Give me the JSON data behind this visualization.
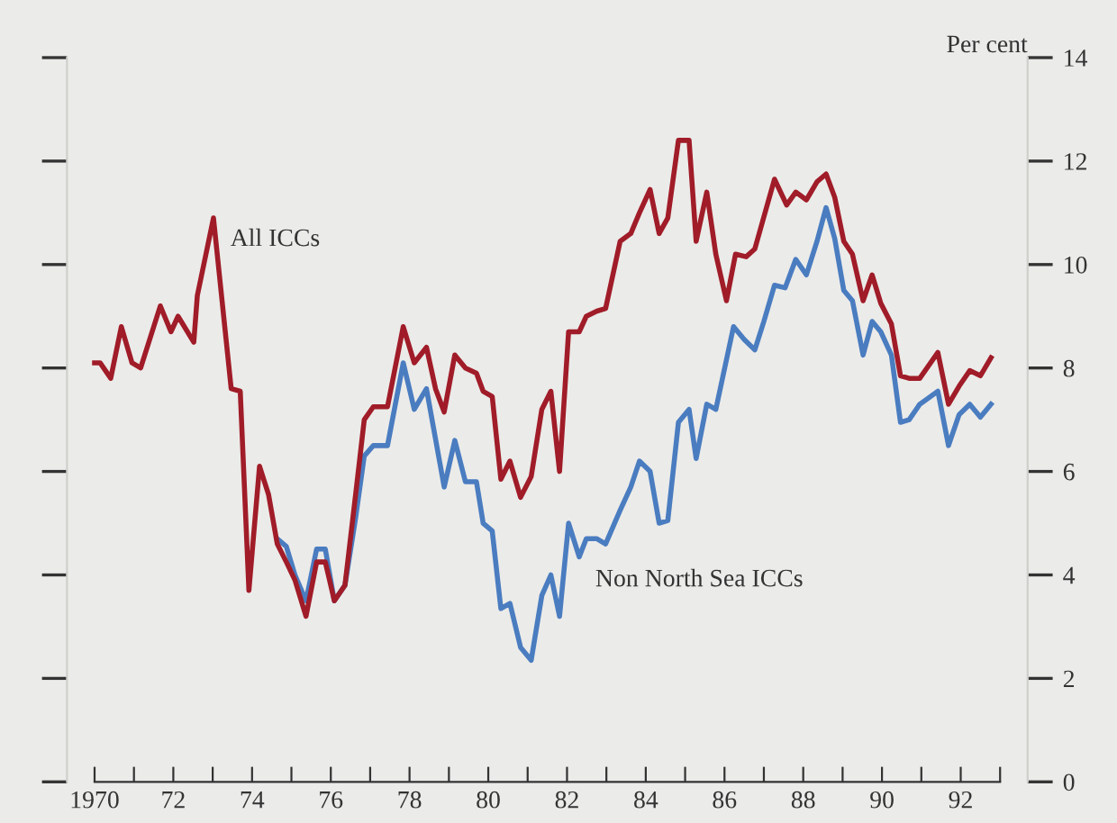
{
  "chart_data": {
    "type": "line",
    "ylabel": "Per cent",
    "xlim": [
      1969.3,
      1993.7
    ],
    "ylim": [
      0,
      14
    ],
    "xticks": [
      1970,
      {
        "value": 1971,
        "label": null
      },
      {
        "value": 1972,
        "label": "72"
      },
      {
        "value": 1973,
        "label": null
      },
      {
        "value": 1974,
        "label": "74"
      },
      {
        "value": 1975,
        "label": null
      },
      {
        "value": 1976,
        "label": "76"
      },
      {
        "value": 1977,
        "label": null
      },
      {
        "value": 1978,
        "label": "78"
      },
      {
        "value": 1979,
        "label": null
      },
      {
        "value": 1980,
        "label": "80"
      },
      {
        "value": 1981,
        "label": null
      },
      {
        "value": 1982,
        "label": "82"
      },
      {
        "value": 1983,
        "label": null
      },
      {
        "value": 1984,
        "label": "84"
      },
      {
        "value": 1985,
        "label": null
      },
      {
        "value": 1986,
        "label": "86"
      },
      {
        "value": 1987,
        "label": null
      },
      {
        "value": 1988,
        "label": "88"
      },
      {
        "value": 1989,
        "label": null
      },
      {
        "value": 1990,
        "label": "90"
      },
      {
        "value": 1991,
        "label": null
      },
      {
        "value": 1992,
        "label": "92"
      },
      {
        "value": 1993,
        "label": null
      }
    ],
    "yticks": [
      0,
      2,
      4,
      6,
      8,
      10,
      12,
      14
    ],
    "grid": false,
    "legend": false,
    "marker": "none",
    "line_style": "solid",
    "series": [
      {
        "name": "Non North Sea ICCs",
        "color": "#4a7cc0",
        "x": [
          1974.64,
          1974.87,
          1975.09,
          1975.37,
          1975.64,
          1975.86,
          1976.09,
          1976.36,
          1976.63,
          1976.85,
          1977.08,
          1977.44,
          1977.84,
          1978.12,
          1978.43,
          1978.88,
          1979.15,
          1979.42,
          1979.7,
          1979.87,
          1980.1,
          1980.32,
          1980.55,
          1980.82,
          1981.09,
          1981.36,
          1981.59,
          1981.81,
          1982.04,
          1982.31,
          1982.49,
          1982.76,
          1982.98,
          1983.35,
          1983.62,
          1983.84,
          1984.11,
          1984.34,
          1984.56,
          1984.83,
          1985.1,
          1985.28,
          1985.55,
          1985.78,
          1986.23,
          1986.5,
          1986.77,
          1987.0,
          1987.27,
          1987.54,
          1987.81,
          1988.08,
          1988.35,
          1988.58,
          1988.8,
          1989.03,
          1989.25,
          1989.52,
          1989.75,
          1989.97,
          1990.24,
          1990.47,
          1990.69,
          1990.96,
          1991.42,
          1991.69,
          1991.96,
          1992.23,
          1992.5,
          1992.77
        ],
        "values": [
          4.7,
          4.55,
          4.0,
          3.5,
          4.5,
          4.5,
          3.5,
          3.8,
          5.1,
          6.3,
          6.5,
          6.5,
          8.1,
          7.2,
          7.6,
          5.7,
          6.6,
          5.8,
          5.8,
          5.0,
          4.85,
          3.35,
          3.45,
          2.6,
          2.35,
          3.6,
          4.0,
          3.2,
          5.0,
          4.35,
          4.7,
          4.7,
          4.6,
          5.25,
          5.7,
          6.2,
          6.0,
          5.0,
          5.05,
          6.95,
          7.2,
          6.25,
          7.3,
          7.2,
          8.8,
          8.55,
          8.35,
          8.9,
          9.6,
          9.55,
          10.1,
          9.8,
          10.45,
          11.1,
          10.5,
          9.5,
          9.3,
          8.25,
          8.9,
          8.7,
          8.25,
          6.95,
          7.0,
          7.3,
          7.55,
          6.5,
          7.1,
          7.3,
          7.05,
          7.3
        ]
      },
      {
        "name": "All ICCs",
        "color": "#a01c28",
        "x": [
          1970.0,
          1970.14,
          1970.41,
          1970.68,
          1970.95,
          1971.17,
          1971.67,
          1971.94,
          1972.12,
          1972.52,
          1972.61,
          1973.02,
          1973.47,
          1973.7,
          1973.92,
          1974.19,
          1974.42,
          1974.64,
          1974.87,
          1975.09,
          1975.37,
          1975.64,
          1975.86,
          1976.09,
          1976.36,
          1976.63,
          1976.85,
          1977.08,
          1977.44,
          1977.84,
          1978.12,
          1978.43,
          1978.66,
          1978.88,
          1979.15,
          1979.42,
          1979.7,
          1979.87,
          1980.1,
          1980.32,
          1980.55,
          1980.82,
          1981.09,
          1981.36,
          1981.59,
          1981.81,
          1982.04,
          1982.31,
          1982.49,
          1982.76,
          1982.98,
          1983.35,
          1983.62,
          1983.84,
          1984.11,
          1984.34,
          1984.56,
          1984.83,
          1985.1,
          1985.28,
          1985.55,
          1985.78,
          1986.05,
          1986.28,
          1986.55,
          1986.77,
          1987.27,
          1987.58,
          1987.81,
          1988.08,
          1988.35,
          1988.58,
          1988.8,
          1989.03,
          1989.25,
          1989.52,
          1989.75,
          1989.97,
          1990.24,
          1990.47,
          1990.69,
          1990.96,
          1991.42,
          1991.69,
          1991.96,
          1992.23,
          1992.5,
          1992.77
        ],
        "values": [
          8.1,
          8.1,
          7.8,
          8.8,
          8.1,
          8.0,
          9.2,
          8.7,
          9.0,
          8.5,
          9.4,
          10.9,
          7.6,
          7.55,
          3.7,
          6.1,
          5.55,
          4.6,
          4.25,
          3.9,
          3.2,
          4.25,
          4.25,
          3.5,
          3.8,
          5.55,
          7.0,
          7.25,
          7.25,
          8.8,
          8.1,
          8.4,
          7.6,
          7.15,
          8.25,
          8.0,
          7.9,
          7.55,
          7.45,
          5.85,
          6.2,
          5.5,
          5.9,
          7.2,
          7.55,
          6.0,
          8.7,
          8.7,
          9.0,
          9.1,
          9.15,
          10.45,
          10.6,
          11.0,
          11.45,
          10.6,
          10.9,
          12.4,
          12.4,
          10.45,
          11.4,
          10.2,
          9.3,
          10.2,
          10.15,
          10.3,
          11.65,
          11.15,
          11.4,
          11.25,
          11.6,
          11.75,
          11.3,
          10.45,
          10.2,
          9.3,
          9.8,
          9.25,
          8.85,
          7.85,
          7.8,
          7.8,
          8.3,
          7.3,
          7.65,
          7.95,
          7.85,
          8.2
        ]
      }
    ]
  }
}
